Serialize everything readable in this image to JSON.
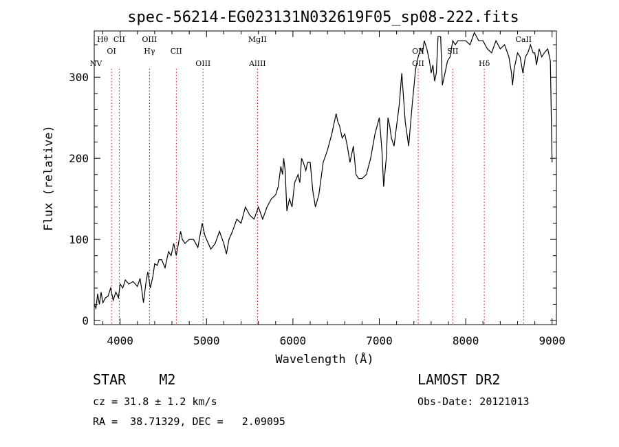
{
  "chart_data": {
    "type": "line",
    "title": "spec-56214-EG023131N032619F05_sp08-222.fits",
    "xlabel": "Wavelength (Å)",
    "ylabel": "Flux (relative)",
    "xlim": [
      3700,
      9050
    ],
    "ylim": [
      -5,
      357
    ],
    "x_ticks": [
      4000,
      5000,
      6000,
      7000,
      8000,
      9000
    ],
    "y_ticks": [
      0,
      100,
      200,
      300
    ],
    "grid": false,
    "series": [
      {
        "x": [
          3700,
          3720,
          3740,
          3760,
          3780,
          3800,
          3830,
          3860,
          3890,
          3920,
          3950,
          3980,
          4000,
          4030,
          4060,
          4100,
          4150,
          4200,
          4230,
          4250,
          4270,
          4300,
          4320,
          4350,
          4380,
          4400,
          4430,
          4450,
          4480,
          4520,
          4560,
          4590,
          4620,
          4650,
          4680,
          4700,
          4720,
          4750,
          4800,
          4850,
          4900,
          4950,
          4980,
          5000,
          5050,
          5100,
          5150,
          5200,
          5230,
          5260,
          5300,
          5350,
          5400,
          5450,
          5500,
          5550,
          5600,
          5650,
          5700,
          5750,
          5800,
          5830,
          5860,
          5880,
          5893,
          5910,
          5930,
          5960,
          5990,
          6020,
          6060,
          6080,
          6100,
          6120,
          6150,
          6170,
          6200,
          6230,
          6260,
          6300,
          6350,
          6400,
          6450,
          6500,
          6520,
          6540,
          6570,
          6600,
          6630,
          6660,
          6700,
          6730,
          6760,
          6800,
          6850,
          6900,
          6950,
          7000,
          7030,
          7050,
          7080,
          7100,
          7120,
          7140,
          7170,
          7200,
          7230,
          7260,
          7300,
          7340,
          7380,
          7420,
          7450,
          7480,
          7500,
          7520,
          7550,
          7580,
          7600,
          7620,
          7640,
          7660,
          7680,
          7710,
          7730,
          7760,
          7790,
          7820,
          7850,
          7880,
          7910,
          7950,
          8000,
          8050,
          8100,
          8150,
          8200,
          8250,
          8300,
          8350,
          8400,
          8450,
          8500,
          8530,
          8542,
          8560,
          8600,
          8630,
          8662,
          8690,
          8720,
          8750,
          8780,
          8800,
          8820,
          8850,
          8880,
          8910,
          8950,
          8980,
          9000
        ],
        "y": [
          20,
          15,
          33,
          20,
          35,
          22,
          28,
          30,
          40,
          25,
          35,
          28,
          45,
          40,
          50,
          45,
          48,
          42,
          52,
          38,
          22,
          48,
          60,
          40,
          55,
          70,
          68,
          75,
          75,
          65,
          85,
          80,
          95,
          80,
          98,
          110,
          100,
          95,
          100,
          100,
          90,
          120,
          105,
          100,
          88,
          95,
          110,
          95,
          82,
          100,
          110,
          125,
          120,
          140,
          130,
          125,
          140,
          125,
          140,
          150,
          155,
          165,
          190,
          180,
          200,
          185,
          135,
          150,
          140,
          170,
          180,
          170,
          200,
          195,
          185,
          195,
          195,
          160,
          140,
          155,
          195,
          210,
          230,
          255,
          245,
          240,
          225,
          230,
          215,
          195,
          215,
          180,
          175,
          175,
          180,
          200,
          230,
          250,
          210,
          165,
          200,
          250,
          240,
          225,
          215,
          240,
          265,
          305,
          245,
          215,
          265,
          310,
          325,
          335,
          330,
          345,
          335,
          320,
          305,
          315,
          295,
          305,
          350,
          350,
          290,
          305,
          320,
          325,
          345,
          340,
          345,
          345,
          345,
          340,
          355,
          345,
          345,
          335,
          330,
          345,
          335,
          340,
          325,
          305,
          290,
          310,
          330,
          325,
          305,
          325,
          330,
          340,
          330,
          330,
          315,
          335,
          325,
          330,
          335,
          320,
          195
        ]
      }
    ],
    "annotations": [
      {
        "label": "NV",
        "x": 3720,
        "row": 3,
        "line": false
      },
      {
        "label": "Hθ",
        "x": 3797,
        "row": 1,
        "line": false
      },
      {
        "label": "OI",
        "x": 3900,
        "row": 2,
        "line": true
      },
      {
        "label": "CII",
        "x": 3990,
        "row": 1,
        "line": true
      },
      {
        "label": "OIII",
        "x": 4340,
        "row": 1,
        "line": true
      },
      {
        "label": "Hγ",
        "x": 4340,
        "row": 2,
        "line": true
      },
      {
        "label": "CII",
        "x": 4650,
        "row": 2,
        "line": true
      },
      {
        "label": "OIII",
        "x": 4960,
        "row": 3,
        "line": true
      },
      {
        "label": "MgII",
        "x": 5590,
        "row": 1,
        "line": true
      },
      {
        "label": "AlIII",
        "x": 5590,
        "row": 3,
        "line": true
      },
      {
        "label": "OII",
        "x": 7450,
        "row": 2,
        "line": true
      },
      {
        "label": "OII",
        "x": 7450,
        "row": 3,
        "line": true
      },
      {
        "label": "SII",
        "x": 7850,
        "row": 2,
        "line": true
      },
      {
        "label": "Hδ",
        "x": 8215,
        "row": 3,
        "line": true
      },
      {
        "label": "CaII",
        "x": 8670,
        "row": 1,
        "line": true
      }
    ]
  },
  "info": {
    "class_line": "STAR    M2",
    "survey": "LAMOST DR2",
    "cz": "cz = 31.8 ± 1.2 km/s",
    "obs_date": "Obs-Date: 20121013",
    "radec": "RA =  38.71329, DEC =   2.09095"
  },
  "colors": {
    "line": "#000000",
    "marker": "#cc0000"
  }
}
